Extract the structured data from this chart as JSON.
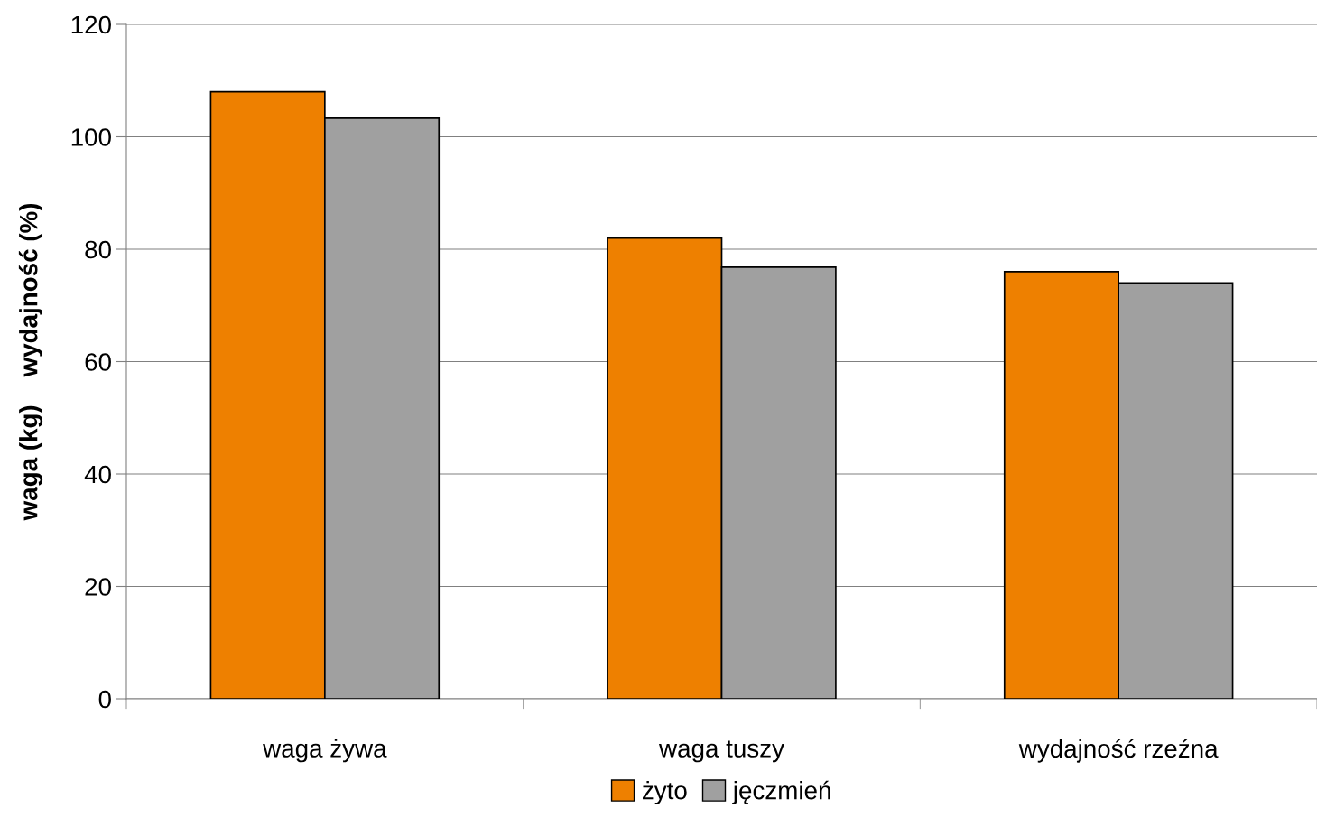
{
  "chart_data": {
    "type": "bar",
    "ylabel": "waga (kg)    wydajność (%)",
    "categories": [
      "waga żywa",
      "waga tuszy",
      "wydajność rzeźna"
    ],
    "series": [
      {
        "name": "żyto",
        "color": "#ee8000",
        "values": [
          108,
          82,
          76
        ]
      },
      {
        "name": "jęczmień",
        "color": "#a0a0a0",
        "values": [
          103.3,
          76.8,
          74
        ]
      }
    ],
    "ylim": [
      0,
      120
    ],
    "yticks": [
      0,
      20,
      40,
      60,
      80,
      100,
      120
    ],
    "grid": "y",
    "legend": "bottom"
  }
}
